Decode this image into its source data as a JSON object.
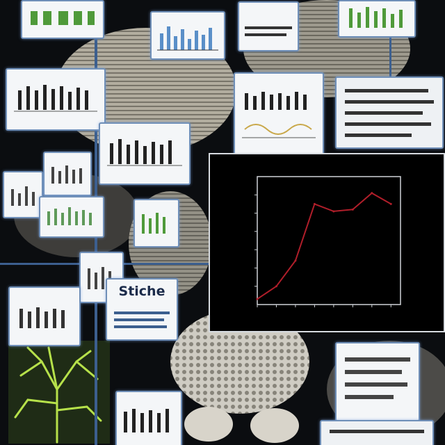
{
  "panel": {
    "label": "Stiche"
  },
  "colors": {
    "background": "#0b0d10",
    "card_border": "#6f8fb8",
    "chart_line": "#b01e2a",
    "chart_background": "#000000",
    "bone": "#cfc9b8",
    "neuron": "#b6e14a"
  },
  "icons": [
    "bone-sculpture",
    "neuron-tree",
    "bar-chart-card"
  ],
  "chart_data": {
    "type": "line",
    "title": "",
    "xlabel": "",
    "ylabel": "",
    "x": [
      0,
      1,
      2,
      3,
      4,
      5,
      6,
      7
    ],
    "series": [
      {
        "values": [
          0.3,
          1.0,
          2.4,
          5.5,
          5.1,
          5.2,
          6.1,
          5.5
        ]
      }
    ],
    "xlim": [
      0,
      7.5
    ],
    "ylim": [
      0,
      7
    ],
    "grid": false,
    "legend": "none"
  }
}
